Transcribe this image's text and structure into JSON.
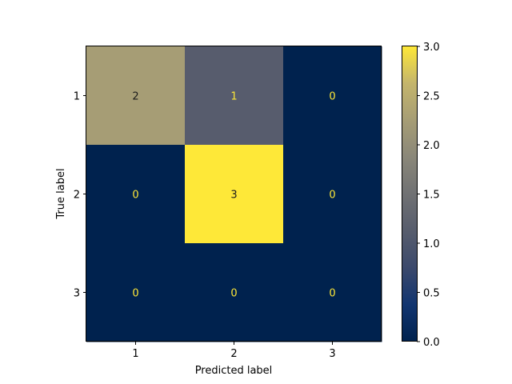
{
  "chart_data": {
    "type": "heatmap",
    "title": "",
    "xlabel": "Predicted label",
    "ylabel": "True label",
    "x_categories": [
      "1",
      "2",
      "3"
    ],
    "y_categories": [
      "1",
      "2",
      "3"
    ],
    "values": [
      [
        2,
        1,
        0
      ],
      [
        0,
        3,
        0
      ],
      [
        0,
        0,
        0
      ]
    ],
    "cell_labels": [
      [
        "2",
        "1",
        "0"
      ],
      [
        "0",
        "3",
        "0"
      ],
      [
        "0",
        "0",
        "0"
      ]
    ],
    "colormap": "cividis",
    "color_range": [
      0,
      3
    ],
    "colorbar_ticks": [
      "0.0",
      "0.5",
      "1.0",
      "1.5",
      "2.0",
      "2.5",
      "3.0"
    ],
    "colorbar_tick_values": [
      0,
      0.5,
      1.0,
      1.5,
      2.0,
      2.5,
      3.0
    ],
    "text_color_on_dark": "#fde737",
    "text_color_on_light": "#1b1b1b",
    "grid": false
  }
}
